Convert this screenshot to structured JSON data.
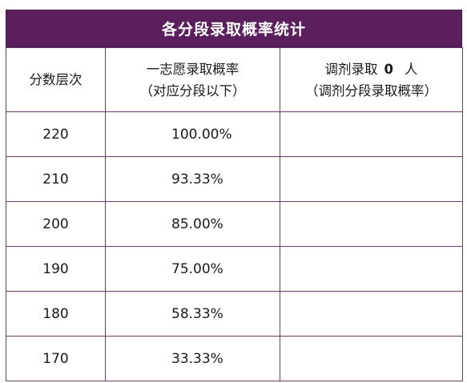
{
  "title": "各分段录取概率统计",
  "header": {
    "col1": "分数层次",
    "col2_line1": "一志愿录取概率",
    "col2_line2": "（对应分段以下）",
    "col3_prefix": "调剂录取",
    "col3_count": "0",
    "col3_suffix": "人",
    "col3_line2": "（调剂分段录取概率）"
  },
  "rows": [
    {
      "score": "220",
      "rate": "100.00%",
      "adjust": ""
    },
    {
      "score": "210",
      "rate": "93.33%",
      "adjust": ""
    },
    {
      "score": "200",
      "rate": "85.00%",
      "adjust": ""
    },
    {
      "score": "190",
      "rate": "75.00%",
      "adjust": ""
    },
    {
      "score": "180",
      "rate": "58.33%",
      "adjust": ""
    },
    {
      "score": "170",
      "rate": "33.33%",
      "adjust": ""
    }
  ],
  "colors": {
    "title_bg": "#5b1f5e",
    "border": "#6b3a6e"
  }
}
